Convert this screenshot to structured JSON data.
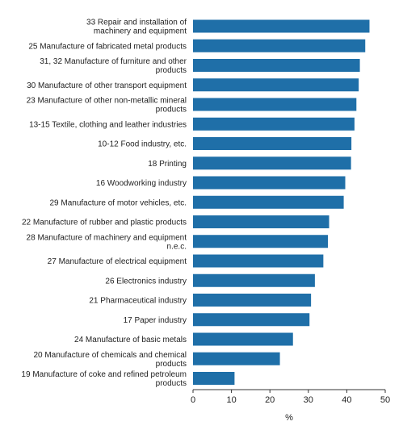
{
  "chart_data": {
    "type": "bar",
    "orientation": "horizontal",
    "categories": [
      "33 Repair and installation of machinery and equipment",
      "25 Manufacture of fabricated metal products",
      "31, 32 Manufacture of furniture and other products",
      "30 Manufacture of other transport equipment",
      "23 Manufacture of other non-metallic mineral products",
      "13-15 Textile, clothing and  leather industries",
      "10-12 Food industry, etc.",
      "18 Printing",
      "16 Woodworking industry",
      "29 Manufacture of motor vehicles, etc.",
      "22 Manufacture of rubber and plastic products",
      "28 Manufacture of machinery and equipment n.e.c.",
      "27 Manufacture of electrical equipment",
      "26 Electronics industry",
      "21 Pharmaceutical industry",
      "17 Paper industry",
      "24 Manufacture of basic metals",
      "20 Manufacture of chemicals and chemical products",
      "19 Manufacture of coke and refined petroleum products"
    ],
    "category_lines": [
      [
        "33 Repair and installation of",
        "machinery and equipment"
      ],
      [
        "25 Manufacture of fabricated metal products"
      ],
      [
        "31, 32 Manufacture of furniture and other",
        "products"
      ],
      [
        "30 Manufacture of other transport equipment"
      ],
      [
        "23 Manufacture of other non-metallic mineral",
        "products"
      ],
      [
        "13-15 Textile, clothing and  leather industries"
      ],
      [
        "10-12 Food industry, etc."
      ],
      [
        "18 Printing"
      ],
      [
        "16 Woodworking industry"
      ],
      [
        "29 Manufacture of motor vehicles, etc."
      ],
      [
        "22 Manufacture of rubber and plastic products"
      ],
      [
        "28 Manufacture of machinery and equipment",
        "n.e.c."
      ],
      [
        "27 Manufacture of electrical equipment"
      ],
      [
        "26 Electronics industry"
      ],
      [
        "21 Pharmaceutical industry"
      ],
      [
        "17 Paper industry"
      ],
      [
        "24 Manufacture of basic metals"
      ],
      [
        "20 Manufacture of chemicals and chemical",
        "products"
      ],
      [
        "19 Manufacture of coke and refined petroleum",
        "products"
      ]
    ],
    "values": [
      45.9,
      44.8,
      43.4,
      43.1,
      42.5,
      42.0,
      41.2,
      41.1,
      39.6,
      39.2,
      35.4,
      35.1,
      33.9,
      31.7,
      30.7,
      30.3,
      26.0,
      22.6,
      10.8
    ],
    "xlabel": "%",
    "xlim": [
      0,
      50
    ],
    "xticks": [
      0,
      10,
      20,
      30,
      40,
      50
    ],
    "bar_color": "#1f6fa8",
    "grid": false,
    "legend": "none"
  }
}
